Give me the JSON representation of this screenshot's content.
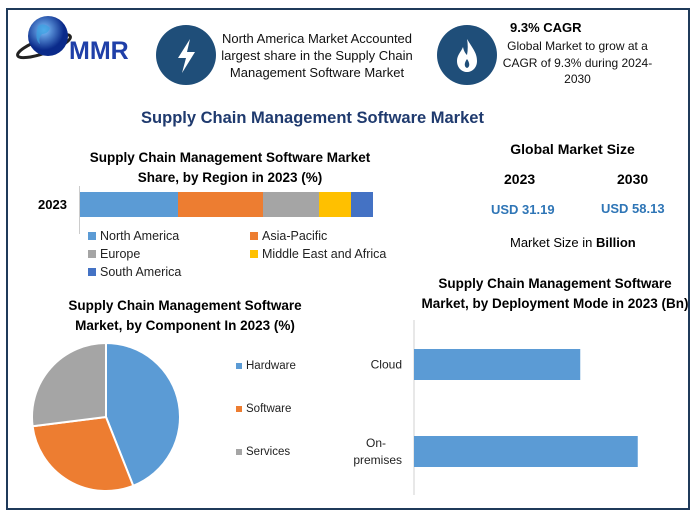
{
  "logo": {
    "text": "MMR"
  },
  "header": {
    "highlight_text": "North America Market Accounted largest share in the Supply Chain Management Software Market",
    "cagr_title": "9.3% CAGR",
    "cagr_text": "Global Market to grow at a CAGR of 9.3% during 2024-2030",
    "icons": [
      "lightning-icon",
      "flame-icon"
    ]
  },
  "main_title": "Supply Chain Management Software Market",
  "market_size": {
    "title": "Global Market Size",
    "years": [
      "2023",
      "2030"
    ],
    "values": [
      "USD 31.19",
      "USD 58.13"
    ],
    "note_prefix": "Market Size in ",
    "note_bold": "Billion",
    "value_color": "#2e75b6"
  },
  "chart_data": [
    {
      "type": "bar",
      "orientation": "horizontal-stacked",
      "title": "Supply Chain Management Software Market Share, by Region in 2023 (%)",
      "categories": [
        "2023"
      ],
      "series": [
        {
          "name": "North America",
          "values": [
            33.5
          ],
          "color": "#5b9bd5"
        },
        {
          "name": "Asia-Pacific",
          "values": [
            29
          ],
          "color": "#ed7d31"
        },
        {
          "name": "Europe",
          "values": [
            19
          ],
          "color": "#a5a5a5"
        },
        {
          "name": "Middle East and Africa",
          "values": [
            11
          ],
          "color": "#ffc000"
        },
        {
          "name": "South America",
          "values": [
            7.5
          ],
          "color": "#4472c4"
        }
      ],
      "legend": "bottom"
    },
    {
      "type": "pie",
      "title": "Supply Chain Management Software Market, by Component In 2023 (%)",
      "labels": [
        "Hardware",
        "Software",
        "Services"
      ],
      "values": [
        44,
        29,
        27
      ],
      "colors": [
        "#5b9bd5",
        "#ed7d31",
        "#a5a5a5"
      ],
      "legend": "right"
    },
    {
      "type": "bar",
      "orientation": "horizontal",
      "title": "Supply Chain Management Software Market, by Deployment Mode in 2023 (Bn)",
      "categories": [
        "Cloud",
        "On-premises"
      ],
      "category_labels": [
        [
          "Cloud"
        ],
        [
          "On-",
          "premises"
        ]
      ],
      "values": [
        13.3,
        17.9
      ],
      "xlim": [
        0,
        20
      ],
      "color": "#5b9bd5"
    }
  ]
}
